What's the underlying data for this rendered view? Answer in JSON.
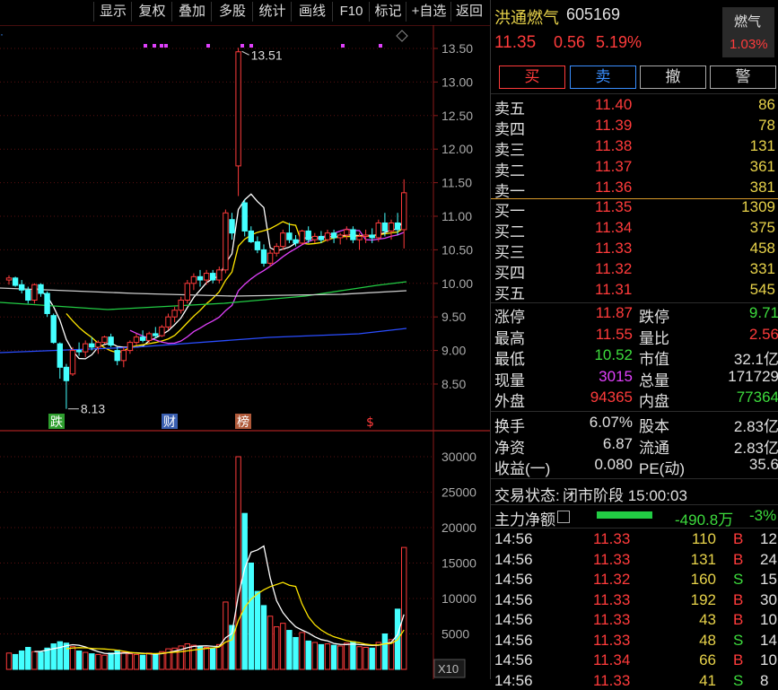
{
  "toolbar": {
    "items": [
      "显示",
      "复权",
      "叠加",
      "多股",
      "统计",
      "画线",
      "F10",
      "标记",
      "+自选",
      "返回"
    ]
  },
  "stock": {
    "name": "洪通燃气",
    "code": "605169",
    "price": "11.35",
    "change": "0.56",
    "change_pct": "5.19%",
    "sector_name": "燃气",
    "sector_pct": "1.03%"
  },
  "actions": {
    "buy": "买",
    "sell": "卖",
    "cancel": "撤",
    "alert": "警"
  },
  "asks": [
    {
      "label": "卖五",
      "price": "11.40",
      "vol": "86"
    },
    {
      "label": "卖四",
      "price": "11.39",
      "vol": "78"
    },
    {
      "label": "卖三",
      "price": "11.38",
      "vol": "131"
    },
    {
      "label": "卖二",
      "price": "11.37",
      "vol": "361"
    },
    {
      "label": "卖一",
      "price": "11.36",
      "vol": "381"
    }
  ],
  "bids": [
    {
      "label": "买一",
      "price": "11.35",
      "vol": "1309"
    },
    {
      "label": "买二",
      "price": "11.34",
      "vol": "375"
    },
    {
      "label": "买三",
      "price": "11.33",
      "vol": "458"
    },
    {
      "label": "买四",
      "price": "11.32",
      "vol": "331"
    },
    {
      "label": "买五",
      "price": "11.31",
      "vol": "545"
    }
  ],
  "stats": [
    {
      "l1": "涨停",
      "v1": "11.87",
      "c1": "r",
      "l2": "跌停",
      "v2": "9.71",
      "c2": "g"
    },
    {
      "l1": "最高",
      "v1": "11.55",
      "c1": "r",
      "l2": "量比",
      "v2": "2.56",
      "c2": "r"
    },
    {
      "l1": "最低",
      "v1": "10.52",
      "c1": "g",
      "l2": "市值",
      "v2": "32.1亿",
      "c2": "w"
    },
    {
      "l1": "现量",
      "v1": "3015",
      "c1": "m",
      "l2": "总量",
      "v2": "171729",
      "c2": "w"
    },
    {
      "l1": "外盘",
      "v1": "94365",
      "c1": "r",
      "l2": "内盘",
      "v2": "77364",
      "c2": "g"
    }
  ],
  "stats2": [
    {
      "l1": "换手",
      "v1": "6.07%",
      "l2": "股本",
      "v2": "2.83亿"
    },
    {
      "l1": "净资",
      "v1": "6.87",
      "l2": "流通",
      "v2": "2.83亿"
    },
    {
      "l1": "收益(一)",
      "v1": "0.080",
      "l2": "PE(动)",
      "v2": "35.6"
    }
  ],
  "trade_status": {
    "label": "交易状态:",
    "value": "闭市阶段 15:00:03"
  },
  "main_flow": {
    "label": "主力净额",
    "value": "-490.8万",
    "pct": "-3%"
  },
  "ticks": [
    {
      "t": "14:56",
      "p": "11.33",
      "v": "110",
      "s": "B",
      "n": "12"
    },
    {
      "t": "14:56",
      "p": "11.33",
      "v": "131",
      "s": "B",
      "n": "24"
    },
    {
      "t": "14:56",
      "p": "11.32",
      "v": "160",
      "s": "S",
      "n": "15"
    },
    {
      "t": "14:56",
      "p": "11.33",
      "v": "192",
      "s": "B",
      "n": "30"
    },
    {
      "t": "14:56",
      "p": "11.33",
      "v": "43",
      "s": "B",
      "n": "10"
    },
    {
      "t": "14:56",
      "p": "11.33",
      "v": "48",
      "s": "S",
      "n": "14"
    },
    {
      "t": "14:56",
      "p": "11.34",
      "v": "66",
      "s": "B",
      "n": "10"
    },
    {
      "t": "14:56",
      "p": "11.33",
      "v": "41",
      "s": "S",
      "n": "8"
    }
  ],
  "chart_data": {
    "type": "candlestick",
    "price_axis": [
      "13.50",
      "13.00",
      "12.50",
      "12.00",
      "11.50",
      "11.00",
      "10.50",
      "10.00",
      "9.50",
      "9.00",
      "8.50"
    ],
    "vol_axis": [
      "30000",
      "25000",
      "20000",
      "15000",
      "10000",
      "5000"
    ],
    "vol_unit": "X10",
    "high_label": "13.51",
    "low_label": "8.13",
    "event_labels": [
      {
        "text": "跌",
        "color": "#2e9e2e"
      },
      {
        "text": "财",
        "color": "#3a5fb0"
      },
      {
        "text": "榜",
        "color": "#b05a3a"
      },
      {
        "text": "$",
        "color": "#ff3b3b"
      }
    ],
    "candles": [
      {
        "o": 10.05,
        "h": 10.12,
        "l": 9.98,
        "c": 10.08,
        "v": 2300
      },
      {
        "o": 10.08,
        "h": 10.1,
        "l": 9.95,
        "c": 9.97,
        "v": 2100
      },
      {
        "o": 9.98,
        "h": 10.05,
        "l": 9.85,
        "c": 9.9,
        "v": 2600
      },
      {
        "o": 9.9,
        "h": 9.95,
        "l": 9.7,
        "c": 9.75,
        "v": 3100
      },
      {
        "o": 9.75,
        "h": 10.0,
        "l": 9.7,
        "c": 9.98,
        "v": 2500
      },
      {
        "o": 9.98,
        "h": 10.0,
        "l": 9.8,
        "c": 9.85,
        "v": 2400
      },
      {
        "o": 9.85,
        "h": 9.88,
        "l": 9.5,
        "c": 9.55,
        "v": 3000
      },
      {
        "o": 9.52,
        "h": 9.55,
        "l": 9.1,
        "c": 9.12,
        "v": 3600
      },
      {
        "o": 9.1,
        "h": 9.12,
        "l": 8.58,
        "c": 8.75,
        "v": 3900
      },
      {
        "o": 8.75,
        "h": 8.8,
        "l": 8.13,
        "c": 8.55,
        "v": 3700
      },
      {
        "o": 8.65,
        "h": 9.05,
        "l": 8.62,
        "c": 9.0,
        "v": 3200
      },
      {
        "o": 9.0,
        "h": 9.12,
        "l": 8.92,
        "c": 8.98,
        "v": 2600
      },
      {
        "o": 8.98,
        "h": 9.15,
        "l": 8.9,
        "c": 9.1,
        "v": 2400
      },
      {
        "o": 9.1,
        "h": 9.2,
        "l": 9.0,
        "c": 9.05,
        "v": 2200
      },
      {
        "o": 9.05,
        "h": 9.15,
        "l": 8.95,
        "c": 9.12,
        "v": 2100
      },
      {
        "o": 9.12,
        "h": 9.22,
        "l": 9.1,
        "c": 9.2,
        "v": 2000
      },
      {
        "o": 9.2,
        "h": 9.25,
        "l": 9.05,
        "c": 9.08,
        "v": 2300
      },
      {
        "o": 9.0,
        "h": 9.05,
        "l": 8.78,
        "c": 8.85,
        "v": 2700
      },
      {
        "o": 8.85,
        "h": 9.05,
        "l": 8.75,
        "c": 9.0,
        "v": 2400
      },
      {
        "o": 9.0,
        "h": 9.15,
        "l": 8.95,
        "c": 9.12,
        "v": 2200
      },
      {
        "o": 9.12,
        "h": 9.25,
        "l": 9.08,
        "c": 9.2,
        "v": 2100
      },
      {
        "o": 9.2,
        "h": 9.3,
        "l": 9.12,
        "c": 9.15,
        "v": 2000
      },
      {
        "o": 9.15,
        "h": 9.28,
        "l": 9.1,
        "c": 9.25,
        "v": 2300
      },
      {
        "o": 9.25,
        "h": 9.35,
        "l": 9.18,
        "c": 9.22,
        "v": 2200
      },
      {
        "o": 9.22,
        "h": 9.38,
        "l": 9.2,
        "c": 9.35,
        "v": 2500
      },
      {
        "o": 9.35,
        "h": 9.55,
        "l": 9.3,
        "c": 9.5,
        "v": 2900
      },
      {
        "o": 9.5,
        "h": 9.65,
        "l": 9.42,
        "c": 9.6,
        "v": 3000
      },
      {
        "o": 9.6,
        "h": 9.8,
        "l": 9.55,
        "c": 9.75,
        "v": 3300
      },
      {
        "o": 9.75,
        "h": 10.05,
        "l": 9.7,
        "c": 10.0,
        "v": 3600
      },
      {
        "o": 10.0,
        "h": 10.15,
        "l": 9.9,
        "c": 10.1,
        "v": 3400
      },
      {
        "o": 10.1,
        "h": 10.2,
        "l": 9.95,
        "c": 10.05,
        "v": 3200
      },
      {
        "o": 10.05,
        "h": 10.2,
        "l": 9.98,
        "c": 10.15,
        "v": 3100
      },
      {
        "o": 10.15,
        "h": 10.2,
        "l": 10.0,
        "c": 10.05,
        "v": 3000
      },
      {
        "o": 10.05,
        "h": 10.25,
        "l": 10.0,
        "c": 10.2,
        "v": 3500
      },
      {
        "o": 10.2,
        "h": 11.1,
        "l": 10.15,
        "c": 11.05,
        "v": 9500
      },
      {
        "o": 10.95,
        "h": 11.05,
        "l": 10.65,
        "c": 10.75,
        "v": 6200
      },
      {
        "o": 11.75,
        "h": 13.51,
        "l": 11.3,
        "c": 13.45,
        "v": 30000
      },
      {
        "o": 11.2,
        "h": 11.25,
        "l": 10.7,
        "c": 10.78,
        "v": 22000
      },
      {
        "o": 10.78,
        "h": 10.85,
        "l": 10.6,
        "c": 10.62,
        "v": 15000
      },
      {
        "o": 10.62,
        "h": 10.7,
        "l": 10.45,
        "c": 10.5,
        "v": 11000
      },
      {
        "o": 10.5,
        "h": 10.58,
        "l": 10.25,
        "c": 10.3,
        "v": 9000
      },
      {
        "o": 10.3,
        "h": 10.5,
        "l": 10.25,
        "c": 10.45,
        "v": 7500
      },
      {
        "o": 10.45,
        "h": 10.6,
        "l": 10.4,
        "c": 10.55,
        "v": 6000
      },
      {
        "o": 10.55,
        "h": 10.8,
        "l": 10.5,
        "c": 10.75,
        "v": 6500
      },
      {
        "o": 10.75,
        "h": 10.9,
        "l": 10.6,
        "c": 10.65,
        "v": 5500
      },
      {
        "o": 10.65,
        "h": 10.72,
        "l": 10.55,
        "c": 10.6,
        "v": 4500
      },
      {
        "o": 10.6,
        "h": 10.8,
        "l": 10.58,
        "c": 10.78,
        "v": 5200
      },
      {
        "o": 10.78,
        "h": 10.85,
        "l": 10.6,
        "c": 10.65,
        "v": 4000
      },
      {
        "o": 10.65,
        "h": 10.75,
        "l": 10.6,
        "c": 10.7,
        "v": 3800
      },
      {
        "o": 10.7,
        "h": 10.78,
        "l": 10.6,
        "c": 10.65,
        "v": 3500
      },
      {
        "o": 10.65,
        "h": 10.8,
        "l": 10.62,
        "c": 10.75,
        "v": 3600
      },
      {
        "o": 10.75,
        "h": 10.8,
        "l": 10.6,
        "c": 10.68,
        "v": 3400
      },
      {
        "o": 10.68,
        "h": 10.75,
        "l": 10.58,
        "c": 10.72,
        "v": 3300
      },
      {
        "o": 10.72,
        "h": 10.85,
        "l": 10.65,
        "c": 10.8,
        "v": 3700
      },
      {
        "o": 10.8,
        "h": 10.85,
        "l": 10.6,
        "c": 10.65,
        "v": 3900
      },
      {
        "o": 10.65,
        "h": 10.75,
        "l": 10.5,
        "c": 10.7,
        "v": 3200
      },
      {
        "o": 10.7,
        "h": 10.8,
        "l": 10.6,
        "c": 10.72,
        "v": 3100
      },
      {
        "o": 10.72,
        "h": 10.82,
        "l": 10.6,
        "c": 10.68,
        "v": 3000
      },
      {
        "o": 10.68,
        "h": 10.95,
        "l": 10.62,
        "c": 10.9,
        "v": 3800
      },
      {
        "o": 10.9,
        "h": 11.05,
        "l": 10.7,
        "c": 10.78,
        "v": 5000
      },
      {
        "o": 10.78,
        "h": 10.95,
        "l": 10.65,
        "c": 10.9,
        "v": 4200
      },
      {
        "o": 10.9,
        "h": 11.05,
        "l": 10.72,
        "c": 10.8,
        "v": 8500
      },
      {
        "o": 10.8,
        "h": 11.55,
        "l": 10.52,
        "c": 11.35,
        "v": 17200
      }
    ]
  }
}
